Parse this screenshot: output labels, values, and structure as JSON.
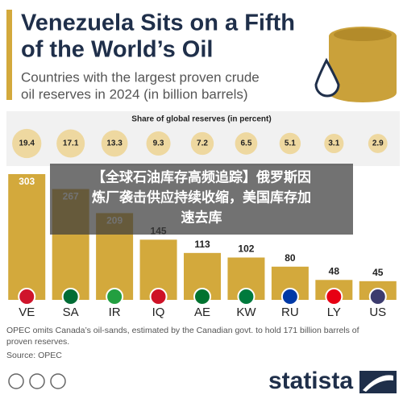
{
  "chart_data": {
    "type": "bar",
    "title": [
      "Venezuela Sits on a Fifth",
      "of the World’s Oil"
    ],
    "subtitle": [
      "Countries with the largest proven crude",
      "oil reserves in 2024 (in billion barrels)"
    ],
    "share_label": "Share of global reserves (in percent)",
    "share_values": [
      19.4,
      17.1,
      13.3,
      9.3,
      7.2,
      6.5,
      5.1,
      3.1,
      2.9
    ],
    "categories": [
      "VE",
      "SA",
      "IR",
      "IQ",
      "AE",
      "KW",
      "RU",
      "LY",
      "US"
    ],
    "values": [
      303,
      267,
      209,
      145,
      113,
      102,
      80,
      48,
      45
    ],
    "color": "#d3a93c",
    "note": [
      "OPEC omits Canada’s oil-sands, estimated by the Canadian govt. to hold 171 billion barrels of",
      "proven reserves."
    ],
    "source": "Source: OPEC",
    "logo": "statista"
  },
  "overlay": {
    "lines": [
      "【全球石油库存高频追踪】俄罗斯因",
      "炼厂袭击供应持续收缩，美国库存加",
      "速去库"
    ]
  }
}
